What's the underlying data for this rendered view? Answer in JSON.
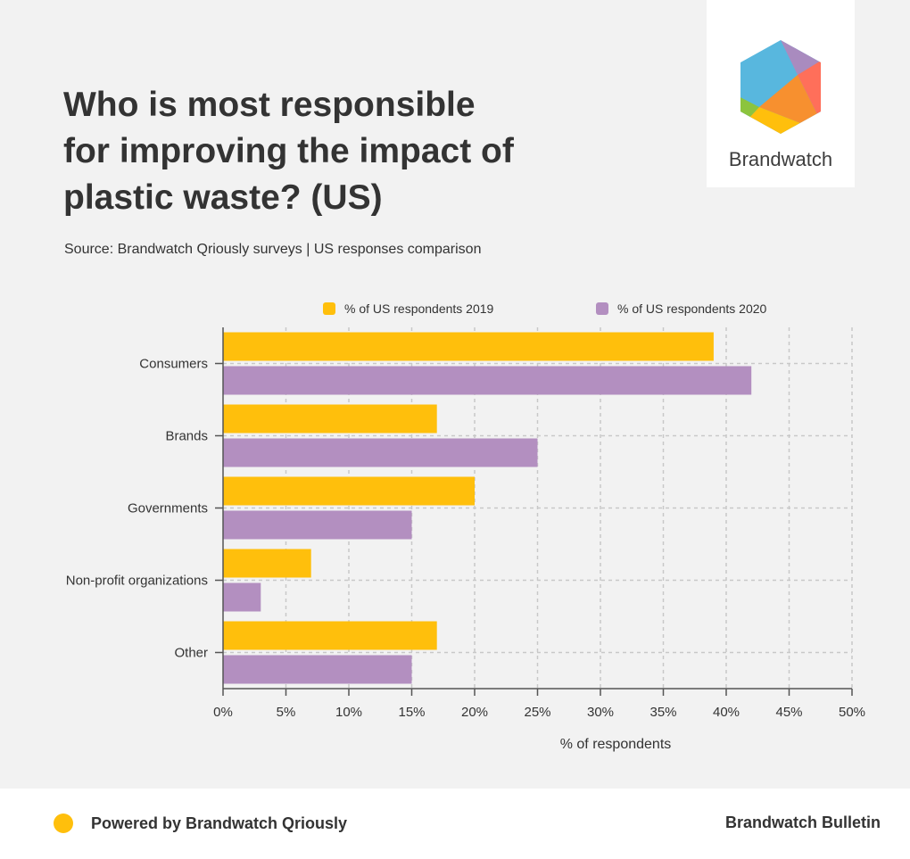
{
  "header": {
    "title": "Who is most responsible for improving the impact of plastic waste? (US)",
    "source": "Source: Brandwatch Qriously surveys | US responses comparison"
  },
  "logo": {
    "text": "Brandwatch",
    "icon": "brandwatch-hexagon-logo"
  },
  "footer": {
    "left": "Powered by Brandwatch Qriously",
    "right": "Brandwatch Bulletin",
    "dot_color": "#ffbf0c"
  },
  "chart_data": {
    "type": "bar",
    "orientation": "horizontal",
    "title": "Who is most responsible for improving the impact of plastic waste? (US)",
    "xlabel": "% of respondents",
    "ylabel": "",
    "xlim": [
      0,
      50
    ],
    "x_ticks": [
      "0%",
      "5%",
      "10%",
      "15%",
      "20%",
      "25%",
      "30%",
      "35%",
      "40%",
      "45%",
      "50%"
    ],
    "grid": true,
    "legend_position": "top",
    "categories": [
      "Consumers",
      "Brands",
      "Governments",
      "Non-profit organizations",
      "Other"
    ],
    "series": [
      {
        "name": "% of US respondents 2019",
        "color": "#ffbf0c",
        "values": [
          39,
          17,
          20,
          7,
          17
        ]
      },
      {
        "name": "% of US respondents 2020",
        "color": "#b38fc0",
        "values": [
          42,
          25,
          15,
          3,
          15
        ]
      }
    ]
  }
}
